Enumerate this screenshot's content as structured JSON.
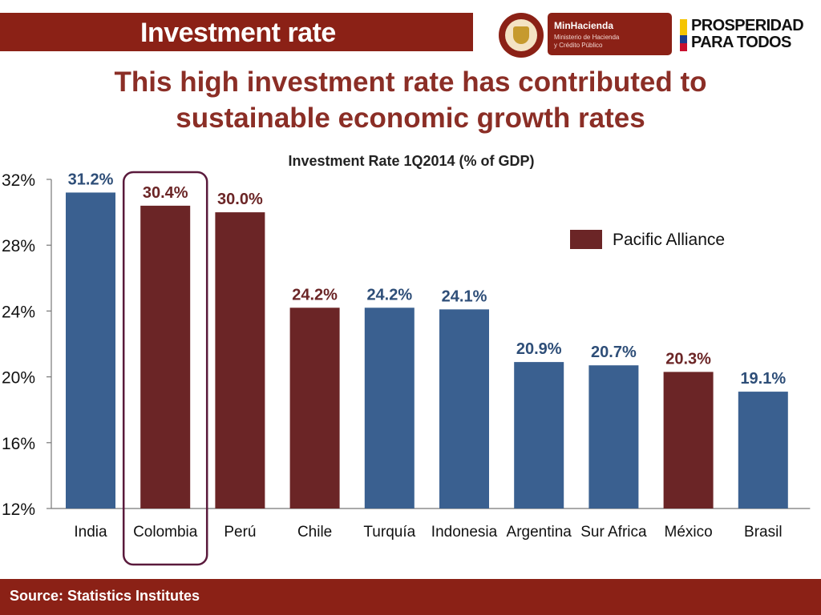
{
  "header": {
    "title": "Investment rate",
    "ministry_name": "MinHacienda",
    "ministry_sub_1": "Ministerio de Hacienda",
    "ministry_sub_2": "y Crédito Público",
    "seal_text": "REPÚBLICA DE COLOMBIA",
    "brand_line_1": "PROSPERIDAD",
    "brand_line_2": "PARA TODOS"
  },
  "headline": {
    "line1": "This high investment rate has contributed to",
    "line2": "sustainable economic growth rates"
  },
  "colors": {
    "brand_red": "#8b2116",
    "headline_red": "#8b2e26",
    "bar_blue": "#3a6090",
    "bar_maroon": "#6b2526",
    "label_blue": "#2e4e78",
    "label_maroon": "#6b2526",
    "highlight_border": "#5a1a3c"
  },
  "chart_data": {
    "type": "bar",
    "title": "Investment Rate 1Q2014 (% of GDP)",
    "xlabel": "",
    "ylabel": "",
    "ylim": [
      12,
      32
    ],
    "yticks": [
      12,
      16,
      20,
      24,
      28,
      32
    ],
    "ytick_labels": [
      "12%",
      "16%",
      "20%",
      "24%",
      "28%",
      "32%"
    ],
    "categories": [
      "India",
      "Colombia",
      "Perú",
      "Chile",
      "Turquía",
      "Indonesia",
      "Argentina",
      "Sur Africa",
      "México",
      "Brasil"
    ],
    "values": [
      31.2,
      30.4,
      30.0,
      24.2,
      24.2,
      24.1,
      20.9,
      20.7,
      20.3,
      19.1
    ],
    "value_labels": [
      "31.2%",
      "30.4%",
      "30.0%",
      "24.2%",
      "24.2%",
      "24.1%",
      "20.9%",
      "20.7%",
      "20.3%",
      "19.1%"
    ],
    "pacific_alliance": [
      false,
      true,
      true,
      true,
      false,
      false,
      false,
      false,
      true,
      false
    ],
    "legend": {
      "label": "Pacific Alliance",
      "placement": "top-right"
    },
    "highlighted_category": "Colombia",
    "grid": false
  },
  "footer": {
    "source": "Source: Statistics Institutes"
  }
}
